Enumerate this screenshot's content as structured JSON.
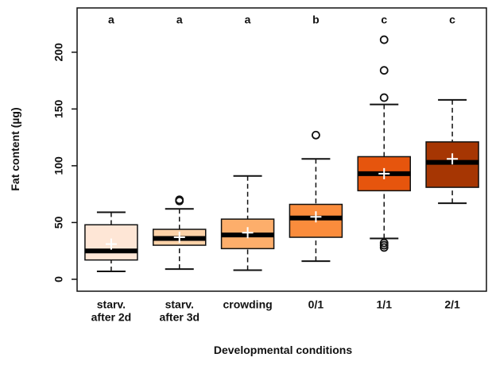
{
  "chart_data": {
    "type": "box",
    "x_label": "Developmental conditions",
    "y_label": "Fat content (µg)",
    "categories": [
      [
        "starv.",
        "after 2d"
      ],
      [
        "starv.",
        "after 3d"
      ],
      [
        "crowding"
      ],
      [
        "0/1"
      ],
      [
        "1/1"
      ],
      [
        "2/1"
      ]
    ],
    "letters": [
      "a",
      "a",
      "a",
      "b",
      "c",
      "c"
    ],
    "colors": [
      "#fee6d6",
      "#fdd2a8",
      "#fdae6b",
      "#fa8c3c",
      "#e6550d",
      "#a63603"
    ],
    "boxes": [
      {
        "whisker_low": 7,
        "q1": 17,
        "median": 25,
        "q3": 48,
        "whisker_high": 59,
        "mean": 31,
        "outliers": []
      },
      {
        "whisker_low": 9,
        "q1": 30,
        "median": 36,
        "q3": 44,
        "whisker_high": 62,
        "mean": 37,
        "outliers": [
          69,
          70
        ]
      },
      {
        "whisker_low": 8,
        "q1": 27,
        "median": 39,
        "q3": 53,
        "whisker_high": 91,
        "mean": 41,
        "outliers": []
      },
      {
        "whisker_low": 16,
        "q1": 37,
        "median": 54,
        "q3": 66,
        "whisker_high": 106,
        "mean": 55,
        "outliers": [
          127
        ]
      },
      {
        "whisker_low": 36,
        "q1": 78,
        "median": 93,
        "q3": 108,
        "whisker_high": 154,
        "mean": 93,
        "outliers": [
          211,
          184,
          160,
          32,
          30,
          28
        ]
      },
      {
        "whisker_low": 67,
        "q1": 81,
        "median": 103,
        "q3": 121,
        "whisker_high": 158,
        "mean": 106,
        "outliers": []
      }
    ],
    "ylim": [
      -10.5,
      239
    ],
    "yticks": [
      0,
      50,
      100,
      150,
      200
    ]
  }
}
